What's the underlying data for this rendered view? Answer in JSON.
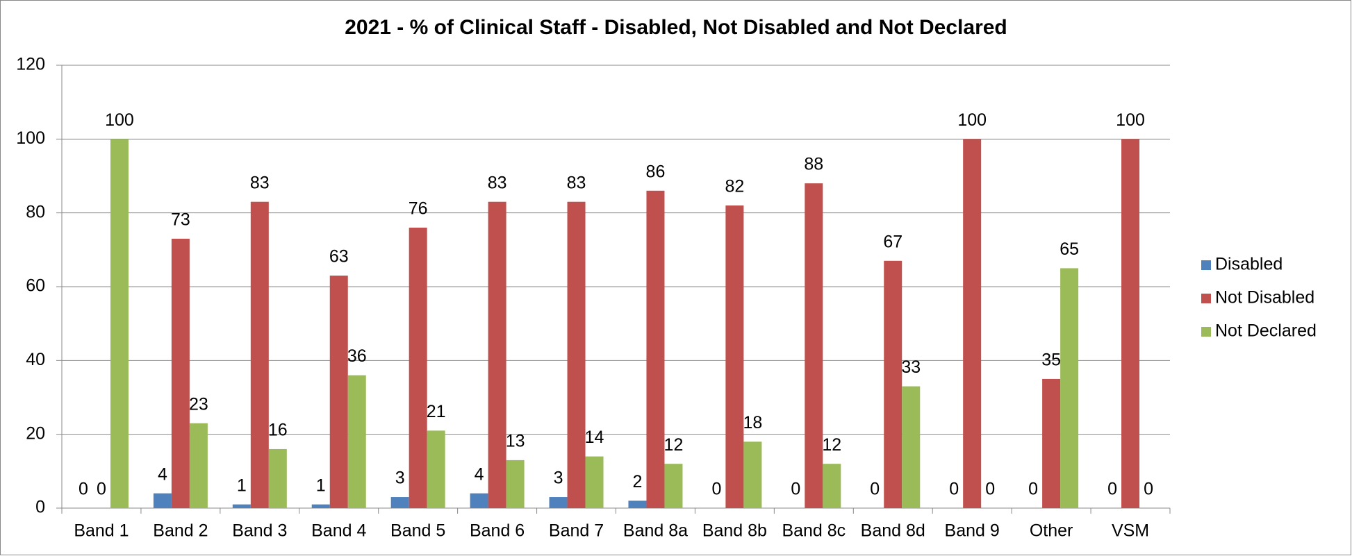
{
  "chart_data": {
    "type": "bar",
    "title": "2021 - % of Clinical Staff - Disabled, Not Disabled and Not Declared",
    "categories": [
      "Band 1",
      "Band 2",
      "Band 3",
      "Band 4",
      "Band 5",
      "Band 6",
      "Band 7",
      "Band 8a",
      "Band 8b",
      "Band 8c",
      "Band 8d",
      "Band 9",
      "Other",
      "VSM"
    ],
    "series": [
      {
        "name": "Disabled",
        "color": "#4f81bd",
        "values": [
          0,
          4,
          1,
          1,
          3,
          4,
          3,
          2,
          0,
          0,
          0,
          0,
          0,
          0
        ]
      },
      {
        "name": "Not Disabled",
        "color": "#c0504d",
        "values": [
          0,
          73,
          83,
          63,
          76,
          83,
          83,
          86,
          82,
          88,
          67,
          100,
          35,
          100
        ]
      },
      {
        "name": "Not Declared",
        "color": "#9bbb59",
        "values": [
          100,
          23,
          16,
          36,
          21,
          13,
          14,
          12,
          18,
          12,
          33,
          0,
          65,
          0
        ]
      }
    ],
    "ylim": [
      0,
      120
    ],
    "yticks": [
      0,
      20,
      40,
      60,
      80,
      100,
      120
    ],
    "grid": true,
    "legend": "right"
  }
}
